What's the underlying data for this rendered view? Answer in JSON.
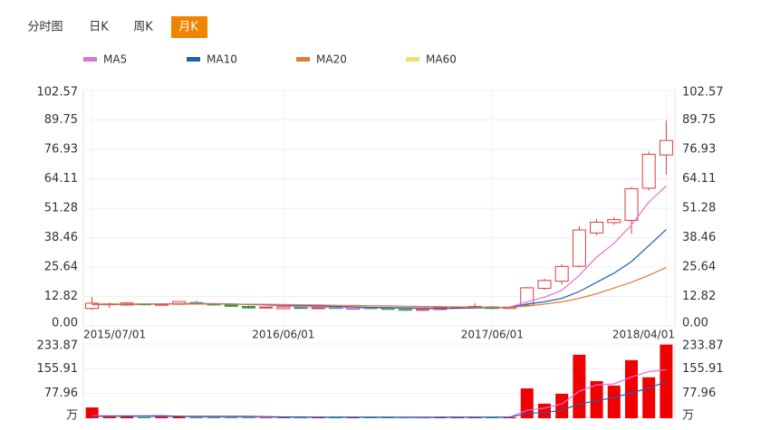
{
  "tabs": [
    "分时图",
    "日K",
    "周K",
    "月K"
  ],
  "active_tab": 3,
  "active_tab_color": "#f08300",
  "chart_data": [
    {
      "type": "candlestick",
      "categories": [
        "2015/07/01",
        null,
        null,
        null,
        null,
        null,
        null,
        null,
        null,
        null,
        null,
        "2016/06/01",
        null,
        null,
        null,
        null,
        null,
        null,
        null,
        null,
        null,
        null,
        null,
        "2017/06/01",
        null,
        null,
        null,
        null,
        null,
        null,
        null,
        null,
        null,
        "2018/04/01"
      ],
      "open": [
        7.6,
        9.3,
        9.1,
        9.6,
        9.2,
        9.4,
        10.2,
        9.5,
        9.3,
        8.5,
        8.0,
        7.5,
        8.2,
        7.8,
        8.0,
        7.3,
        7.9,
        7.6,
        7.2,
        6.9,
        7.1,
        8.0,
        8.2,
        8.3,
        7.6,
        9.0,
        16.4,
        19.5,
        26.0,
        40.5,
        45.0,
        46.0,
        60.0,
        74.5
      ],
      "high": [
        12.6,
        10.1,
        10.3,
        9.9,
        9.8,
        10.8,
        11.0,
        9.8,
        9.6,
        8.9,
        8.5,
        8.8,
        8.6,
        8.2,
        8.9,
        8.4,
        8.2,
        8.0,
        7.6,
        7.4,
        8.8,
        8.6,
        9.8,
        8.6,
        8.4,
        17.0,
        20.5,
        27.0,
        43.5,
        46.5,
        47.5,
        60.5,
        76.0,
        89.5
      ],
      "low": [
        7.0,
        7.8,
        8.8,
        8.9,
        8.8,
        9.0,
        9.4,
        8.9,
        8.2,
        7.5,
        7.7,
        7.3,
        7.4,
        7.5,
        7.6,
        7.1,
        7.4,
        7.2,
        6.6,
        6.5,
        6.9,
        7.6,
        7.9,
        7.4,
        7.3,
        8.6,
        15.8,
        18.0,
        25.5,
        39.5,
        44.0,
        40.0,
        59.0,
        66.0
      ],
      "close": [
        9.9,
        9.6,
        10.0,
        9.3,
        9.4,
        10.6,
        9.6,
        9.2,
        8.5,
        7.8,
        8.2,
        8.3,
        7.6,
        7.9,
        7.8,
        7.9,
        7.6,
        7.5,
        6.9,
        7.2,
        8.0,
        8.2,
        8.5,
        7.6,
        8.1,
        16.6,
        19.8,
        25.9,
        41.8,
        45.2,
        46.3,
        59.8,
        74.8,
        80.8
      ],
      "up_color": "#e03a3a",
      "down_color": "#2ea043",
      "series": [
        {
          "name": "MA5",
          "color": "#e070e0",
          "values": [
            9.2,
            9.3,
            9.4,
            9.5,
            9.6,
            9.7,
            9.8,
            9.7,
            9.5,
            9.3,
            9.0,
            8.7,
            8.4,
            8.2,
            8.0,
            7.9,
            7.9,
            7.8,
            7.7,
            7.5,
            7.5,
            7.6,
            7.8,
            8.0,
            8.2,
            10.5,
            12.5,
            15.5,
            22.0,
            30.0,
            36.0,
            44.0,
            54.0,
            61.0
          ]
        },
        {
          "name": "MA10",
          "color": "#1f5fb4",
          "values": [
            9.4,
            9.4,
            9.4,
            9.4,
            9.5,
            9.5,
            9.6,
            9.6,
            9.5,
            9.4,
            9.3,
            9.1,
            8.9,
            8.7,
            8.5,
            8.3,
            8.1,
            8.0,
            7.9,
            7.8,
            7.7,
            7.7,
            7.8,
            7.9,
            8.0,
            9.5,
            10.5,
            12.0,
            15.0,
            19.0,
            23.0,
            28.0,
            35.0,
            42.0
          ]
        },
        {
          "name": "MA20",
          "color": "#e07b3a",
          "values": [
            9.5,
            9.5,
            9.5,
            9.5,
            9.5,
            9.5,
            9.5,
            9.5,
            9.5,
            9.4,
            9.4,
            9.3,
            9.2,
            9.1,
            9.0,
            8.9,
            8.8,
            8.7,
            8.6,
            8.5,
            8.4,
            8.3,
            8.2,
            8.1,
            8.1,
            8.6,
            9.5,
            10.5,
            12.0,
            14.0,
            16.5,
            19.0,
            22.0,
            25.5
          ]
        },
        {
          "name": "MA60",
          "color": "#f2e06a",
          "values": [
            null,
            null,
            null,
            null,
            null,
            null,
            null,
            null,
            null,
            null,
            null,
            null,
            null,
            null,
            null,
            null,
            null,
            null,
            null,
            null,
            null,
            null,
            null,
            null,
            null,
            null,
            null,
            null,
            null,
            null,
            null,
            null,
            null,
            null
          ]
        }
      ],
      "ylim": [
        0,
        102.57
      ],
      "yticks": [
        {
          "value": 0,
          "label": "0.00"
        },
        12.82,
        25.64,
        38.46,
        51.28,
        64.11,
        76.93,
        89.75,
        102.57
      ],
      "grid": true
    },
    {
      "type": "bar",
      "values": [
        34,
        4,
        5,
        3,
        4,
        6,
        5,
        3,
        4,
        3,
        2,
        3,
        3,
        2,
        3,
        2,
        2,
        2,
        3,
        2,
        4,
        3,
        4,
        3,
        3,
        94,
        46,
        77,
        200,
        117,
        103,
        183,
        129,
        232
      ],
      "series": [
        {
          "color": "#e070e0",
          "values": [
            8,
            8,
            8,
            8,
            9,
            6,
            4,
            4,
            4,
            4,
            4,
            3,
            3,
            3,
            3,
            3,
            3,
            3,
            2,
            2,
            3,
            3,
            3,
            3,
            3,
            25,
            32,
            45,
            85,
            105,
            108,
            130,
            147,
            153
          ]
        },
        {
          "color": "#1f5fb4",
          "values": [
            6,
            6,
            6,
            6,
            6,
            6,
            6,
            6,
            6,
            6,
            5,
            4,
            4,
            3,
            3,
            3,
            3,
            3,
            3,
            3,
            3,
            3,
            3,
            3,
            3,
            15,
            18,
            25,
            45,
            55,
            65,
            80,
            95,
            115
          ]
        }
      ],
      "ylim": [
        0,
        233.87
      ],
      "yticks": [
        {
          "value": 0,
          "label": "万"
        },
        77.96,
        155.91,
        233.87
      ],
      "grid": true
    }
  ]
}
